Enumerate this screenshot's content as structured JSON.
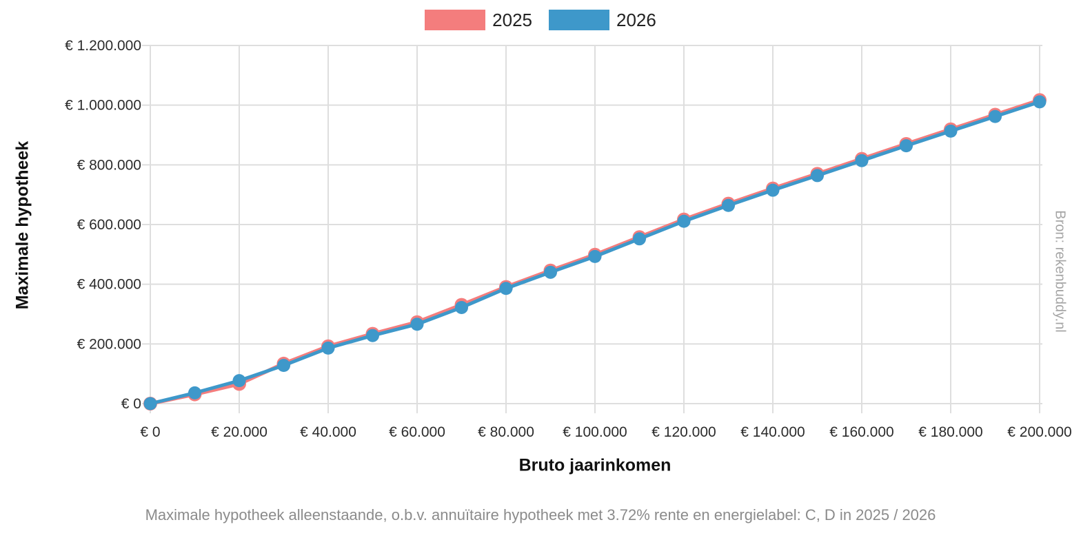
{
  "legend": {
    "items": [
      "2025",
      "2026"
    ]
  },
  "chart_data": {
    "type": "line",
    "title": "",
    "subtitle": "Maximale hypotheek alleenstaande, o.b.v. annuïtaire hypotheek met 3.72% rente en energielabel: C, D in 2025 / 2026",
    "source": "Bron: rekenbuddy.nl",
    "xlabel": "Bruto jaarinkomen",
    "ylabel": "Maximale hypotheek",
    "x": [
      0,
      10000,
      20000,
      30000,
      40000,
      50000,
      60000,
      70000,
      80000,
      90000,
      100000,
      110000,
      120000,
      130000,
      140000,
      150000,
      160000,
      170000,
      180000,
      190000,
      200000
    ],
    "series": [
      {
        "name": "2025",
        "color": "#F47D7D",
        "values": [
          0,
          31000,
          66000,
          134000,
          192000,
          234000,
          273000,
          331000,
          391000,
          446000,
          499000,
          558000,
          617000,
          670000,
          721000,
          770000,
          820000,
          870000,
          919000,
          968000,
          1017000
        ]
      },
      {
        "name": "2026",
        "color": "#3E98CA",
        "values": [
          0,
          36000,
          77000,
          128000,
          186000,
          228000,
          266000,
          322000,
          386000,
          440000,
          493000,
          552000,
          611000,
          664000,
          715000,
          764000,
          814000,
          864000,
          913000,
          962000,
          1011000
        ]
      }
    ],
    "xlim": [
      0,
      200000
    ],
    "ylim": [
      0,
      1200000
    ],
    "x_ticks": [
      0,
      20000,
      40000,
      60000,
      80000,
      100000,
      120000,
      140000,
      160000,
      180000,
      200000
    ],
    "x_tick_labels": [
      "€ 0",
      "€ 20.000",
      "€ 40.000",
      "€ 60.000",
      "€ 80.000",
      "€ 100.000",
      "€ 120.000",
      "€ 140.000",
      "€ 160.000",
      "€ 180.000",
      "€ 200.000"
    ],
    "y_ticks": [
      0,
      200000,
      400000,
      600000,
      800000,
      1000000,
      1200000
    ],
    "y_tick_labels": [
      "€ 0",
      "€ 200.000",
      "€ 400.000",
      "€ 600.000",
      "€ 800.000",
      "€ 1.000.000",
      "€ 1.200.000"
    ],
    "grid": true,
    "legend_position": "top",
    "colors": {
      "grid": "#DEDEDE",
      "tick_text": "#2b2b2b",
      "background": "#ffffff"
    }
  }
}
